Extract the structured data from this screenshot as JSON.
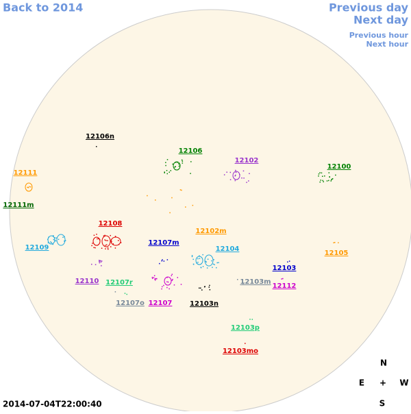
{
  "nav": {
    "back": "Back to 2014",
    "previous_day": "Previous day",
    "next_day": "Next day",
    "previous_hour": "Previous hour",
    "next_hour": "Next hour"
  },
  "timestamp": "2014-07-04T22:00:40",
  "compass": {
    "north": "N",
    "east": "E",
    "center": "+",
    "west": "W",
    "south": "S"
  },
  "regions": [
    {
      "label": "12106n",
      "color": "#000000"
    },
    {
      "label": "12106",
      "color": "#008000"
    },
    {
      "label": "12102",
      "color": "#9933cc"
    },
    {
      "label": "12100",
      "color": "#008000"
    },
    {
      "label": "12111",
      "color": "#ff9900"
    },
    {
      "label": "12111m",
      "color": "#006600"
    },
    {
      "label": "12108",
      "color": "#dd0000"
    },
    {
      "label": "12102m",
      "color": "#ff9900"
    },
    {
      "label": "12109",
      "color": "#22aadd"
    },
    {
      "label": "12107m",
      "color": "#0000cc"
    },
    {
      "label": "12104",
      "color": "#22aadd"
    },
    {
      "label": "12105",
      "color": "#ff9900"
    },
    {
      "label": "12103",
      "color": "#0000cc"
    },
    {
      "label": "12110",
      "color": "#9933cc"
    },
    {
      "label": "12107r",
      "color": "#22cc77"
    },
    {
      "label": "12103m",
      "color": "#778899"
    },
    {
      "label": "12112",
      "color": "#cc00cc"
    },
    {
      "label": "12107",
      "color": "#cc00cc"
    },
    {
      "label": "12107o",
      "color": "#778899"
    },
    {
      "label": "12103n",
      "color": "#000000"
    },
    {
      "label": "12103p",
      "color": "#22cc77"
    },
    {
      "label": "12103mo",
      "color": "#dd0000"
    }
  ]
}
